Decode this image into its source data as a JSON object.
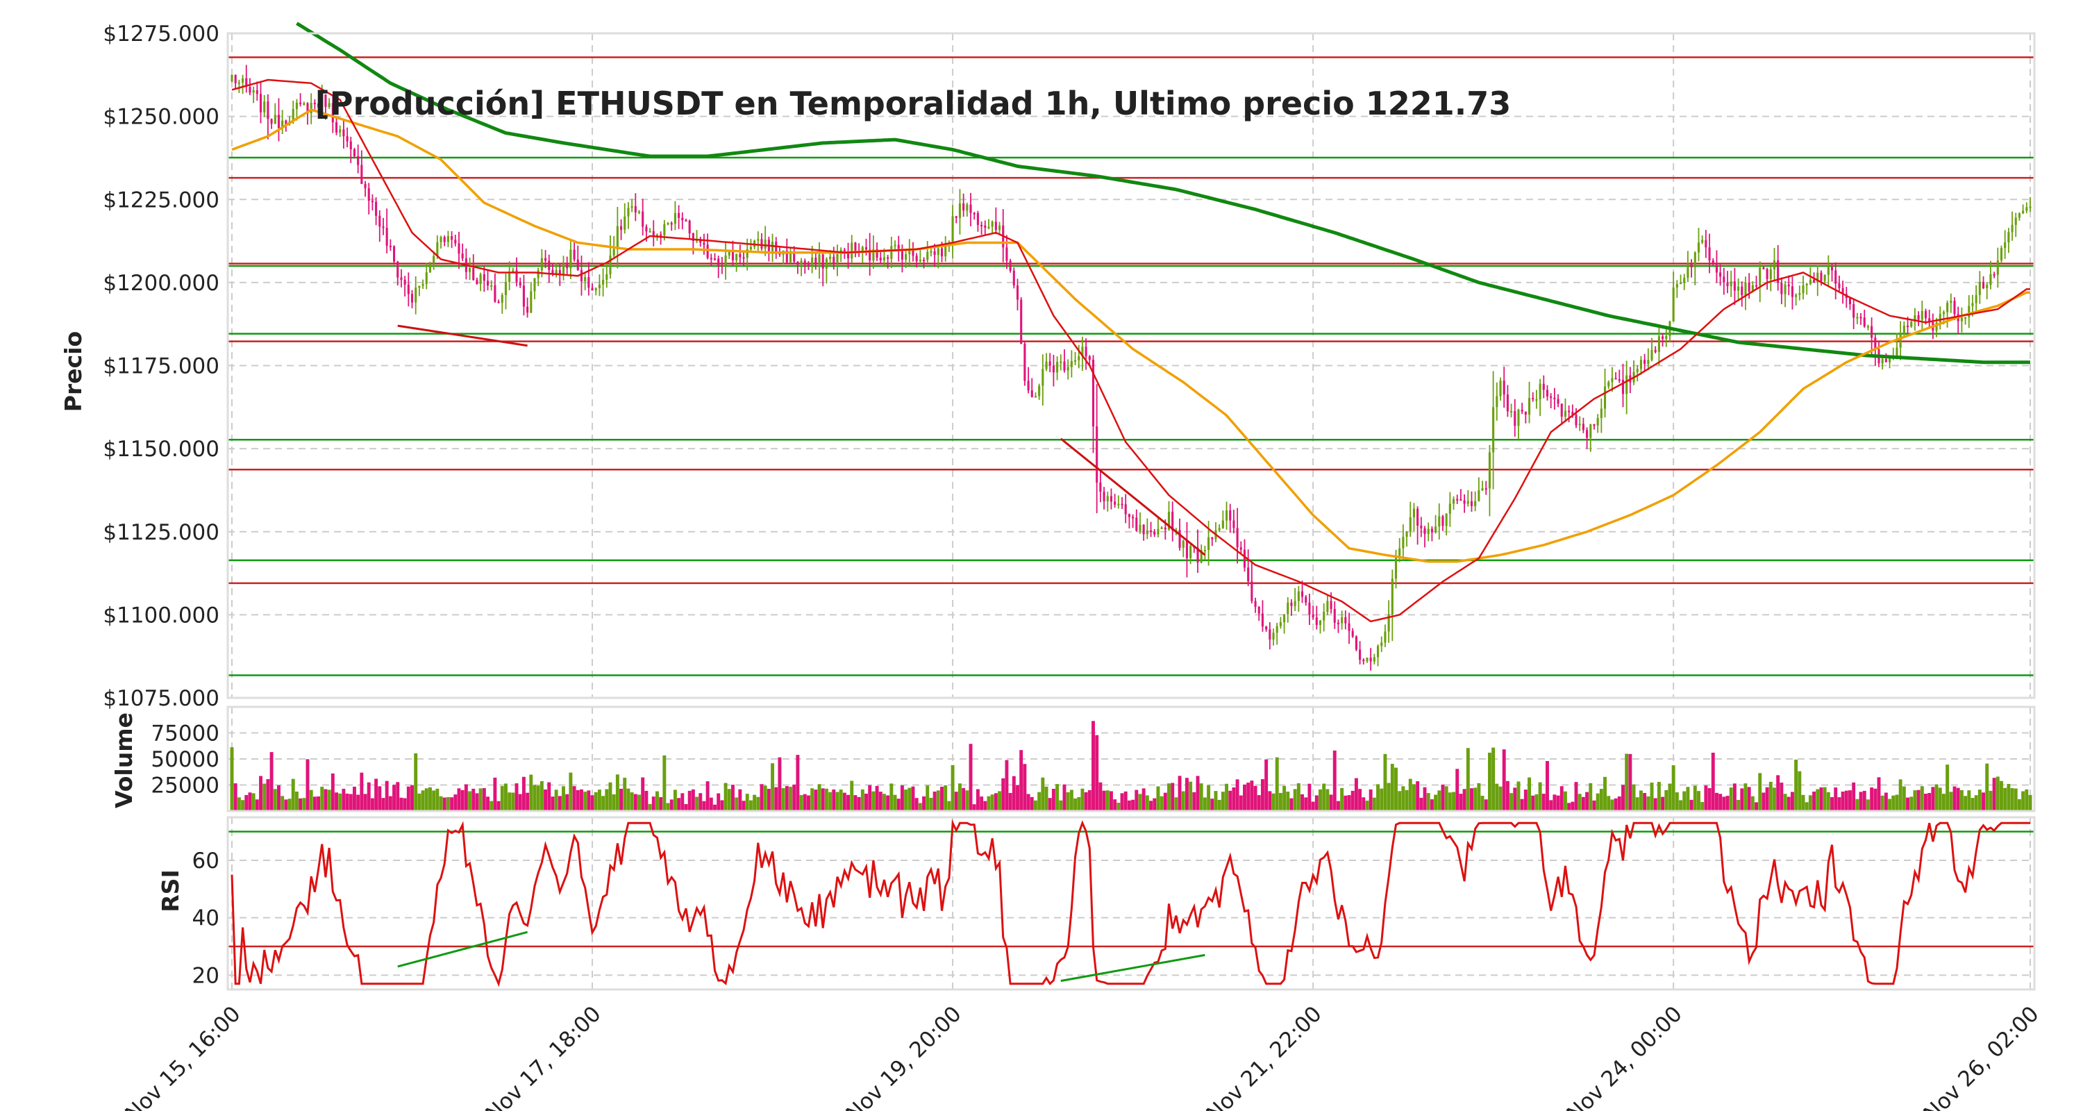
{
  "chart_data": {
    "type": "candlestick",
    "title": "[Producción] ETHUSDT en Temporalidad 1h, Ultimo precio 1221.73",
    "last_price": 1221.73,
    "x_tick_labels": [
      "Nov 15, 16:00",
      "Nov 17, 18:00",
      "Nov 19, 20:00",
      "Nov 21, 22:00",
      "Nov 24, 00:00",
      "Nov 26, 02:00"
    ],
    "colors": {
      "up": "#6aa00f",
      "down": "#e0147a",
      "ma_fast": "#dd1111",
      "ma_mid": "#f0a000",
      "ma_slow": "#118811",
      "support": "#119911",
      "resistance": "#cc2222",
      "rsi": "#dd1111"
    },
    "price_panel": {
      "ylabel": "Precio",
      "ylim": [
        1075,
        1275
      ],
      "y_ticks": [
        1075,
        1100,
        1125,
        1150,
        1175,
        1200,
        1225,
        1250,
        1275
      ],
      "y_tick_labels": [
        "$1075.000",
        "$1100.000",
        "$1125.000",
        "$1150.000",
        "$1175.000",
        "$1200.000",
        "$1225.000",
        "$1250.000",
        "$1275.000"
      ],
      "resistance_levels": [
        1267.8,
        1231.5,
        1205.7,
        1182.3,
        1143.7,
        1109.5
      ],
      "support_levels": [
        1237.6,
        1205.0,
        1184.6,
        1152.7,
        1116.4,
        1081.8
      ],
      "close_keypoints": [
        [
          0,
          1262
        ],
        [
          6,
          1256
        ],
        [
          12,
          1248
        ],
        [
          18,
          1252
        ],
        [
          26,
          1255
        ],
        [
          30,
          1245
        ],
        [
          36,
          1232
        ],
        [
          42,
          1215
        ],
        [
          46,
          1203
        ],
        [
          50,
          1195
        ],
        [
          54,
          1202
        ],
        [
          58,
          1215
        ],
        [
          62,
          1212
        ],
        [
          66,
          1203
        ],
        [
          70,
          1200
        ],
        [
          74,
          1194
        ],
        [
          78,
          1205
        ],
        [
          82,
          1192
        ],
        [
          86,
          1208
        ],
        [
          90,
          1202
        ],
        [
          94,
          1208
        ],
        [
          98,
          1200
        ],
        [
          102,
          1198
        ],
        [
          106,
          1212
        ],
        [
          110,
          1222
        ],
        [
          114,
          1218
        ],
        [
          118,
          1213
        ],
        [
          124,
          1220
        ],
        [
          130,
          1210
        ],
        [
          136,
          1207
        ],
        [
          142,
          1209
        ],
        [
          148,
          1212
        ],
        [
          154,
          1208
        ],
        [
          160,
          1205
        ],
        [
          166,
          1207
        ],
        [
          172,
          1210
        ],
        [
          178,
          1208
        ],
        [
          184,
          1210
        ],
        [
          190,
          1208
        ],
        [
          198,
          1210
        ],
        [
          202,
          1225
        ],
        [
          206,
          1220
        ],
        [
          212,
          1218
        ],
        [
          216,
          1205
        ],
        [
          218,
          1195
        ],
        [
          220,
          1168
        ],
        [
          222,
          1165
        ],
        [
          226,
          1175
        ],
        [
          230,
          1175
        ],
        [
          234,
          1178
        ],
        [
          236,
          1180
        ],
        [
          238,
          1175
        ],
        [
          240,
          1138
        ],
        [
          246,
          1132
        ],
        [
          252,
          1125
        ],
        [
          256,
          1122
        ],
        [
          260,
          1130
        ],
        [
          264,
          1120
        ],
        [
          268,
          1118
        ],
        [
          272,
          1125
        ],
        [
          276,
          1130
        ],
        [
          280,
          1118
        ],
        [
          284,
          1102
        ],
        [
          288,
          1095
        ],
        [
          292,
          1100
        ],
        [
          296,
          1105
        ],
        [
          300,
          1098
        ],
        [
          304,
          1102
        ],
        [
          308,
          1098
        ],
        [
          312,
          1090
        ],
        [
          316,
          1085
        ],
        [
          318,
          1090
        ],
        [
          320,
          1096
        ],
        [
          324,
          1122
        ],
        [
          328,
          1130
        ],
        [
          332,
          1125
        ],
        [
          336,
          1128
        ],
        [
          340,
          1134
        ],
        [
          344,
          1132
        ],
        [
          348,
          1140
        ],
        [
          350,
          1160
        ],
        [
          352,
          1168
        ],
        [
          356,
          1158
        ],
        [
          360,
          1163
        ],
        [
          364,
          1170
        ],
        [
          368,
          1162
        ],
        [
          372,
          1160
        ],
        [
          376,
          1155
        ],
        [
          378,
          1158
        ],
        [
          382,
          1170
        ],
        [
          386,
          1168
        ],
        [
          390,
          1175
        ],
        [
          394,
          1180
        ],
        [
          398,
          1183
        ],
        [
          400,
          1198
        ],
        [
          404,
          1205
        ],
        [
          408,
          1212
        ],
        [
          412,
          1205
        ],
        [
          416,
          1200
        ],
        [
          420,
          1198
        ],
        [
          424,
          1202
        ],
        [
          428,
          1205
        ],
        [
          430,
          1198
        ],
        [
          434,
          1195
        ],
        [
          438,
          1200
        ],
        [
          442,
          1203
        ],
        [
          446,
          1200
        ],
        [
          450,
          1190
        ],
        [
          454,
          1185
        ],
        [
          458,
          1175
        ],
        [
          460,
          1178
        ],
        [
          464,
          1185
        ],
        [
          468,
          1190
        ],
        [
          472,
          1188
        ],
        [
          476,
          1193
        ],
        [
          480,
          1190
        ],
        [
          484,
          1198
        ],
        [
          488,
          1202
        ],
        [
          492,
          1210
        ],
        [
          494,
          1218
        ],
        [
          498,
          1221.73
        ]
      ],
      "ma_fast_keypoints": [
        [
          0,
          1258
        ],
        [
          10,
          1261
        ],
        [
          22,
          1260
        ],
        [
          30,
          1255
        ],
        [
          40,
          1235
        ],
        [
          50,
          1215
        ],
        [
          58,
          1207
        ],
        [
          66,
          1205
        ],
        [
          74,
          1203
        ],
        [
          84,
          1203
        ],
        [
          96,
          1202
        ],
        [
          104,
          1206
        ],
        [
          116,
          1214
        ],
        [
          128,
          1213
        ],
        [
          150,
          1211
        ],
        [
          170,
          1209
        ],
        [
          190,
          1210
        ],
        [
          200,
          1212
        ],
        [
          212,
          1215
        ],
        [
          218,
          1212
        ],
        [
          228,
          1190
        ],
        [
          238,
          1175
        ],
        [
          248,
          1152
        ],
        [
          260,
          1136
        ],
        [
          272,
          1125
        ],
        [
          284,
          1115
        ],
        [
          296,
          1110
        ],
        [
          308,
          1104
        ],
        [
          316,
          1098
        ],
        [
          324,
          1100
        ],
        [
          336,
          1110
        ],
        [
          346,
          1117
        ],
        [
          356,
          1135
        ],
        [
          366,
          1155
        ],
        [
          378,
          1165
        ],
        [
          390,
          1172
        ],
        [
          402,
          1180
        ],
        [
          414,
          1192
        ],
        [
          426,
          1200
        ],
        [
          436,
          1203
        ],
        [
          448,
          1196
        ],
        [
          460,
          1190
        ],
        [
          470,
          1188
        ],
        [
          480,
          1190
        ],
        [
          490,
          1192
        ],
        [
          498,
          1198
        ]
      ],
      "ma_mid_keypoints": [
        [
          0,
          1240
        ],
        [
          10,
          1244
        ],
        [
          22,
          1252
        ],
        [
          34,
          1248
        ],
        [
          46,
          1244
        ],
        [
          58,
          1237
        ],
        [
          70,
          1224
        ],
        [
          84,
          1217
        ],
        [
          96,
          1212
        ],
        [
          110,
          1210
        ],
        [
          128,
          1210
        ],
        [
          150,
          1209
        ],
        [
          170,
          1209
        ],
        [
          190,
          1210
        ],
        [
          204,
          1212
        ],
        [
          218,
          1212
        ],
        [
          234,
          1195
        ],
        [
          250,
          1180
        ],
        [
          264,
          1170
        ],
        [
          276,
          1160
        ],
        [
          288,
          1145
        ],
        [
          300,
          1130
        ],
        [
          310,
          1120
        ],
        [
          320,
          1118
        ],
        [
          332,
          1116
        ],
        [
          340,
          1116
        ],
        [
          352,
          1118
        ],
        [
          364,
          1121
        ],
        [
          376,
          1125
        ],
        [
          388,
          1130
        ],
        [
          400,
          1136
        ],
        [
          412,
          1145
        ],
        [
          424,
          1155
        ],
        [
          436,
          1168
        ],
        [
          448,
          1176
        ],
        [
          460,
          1182
        ],
        [
          470,
          1186
        ],
        [
          480,
          1190
        ],
        [
          490,
          1193
        ],
        [
          498,
          1197
        ]
      ],
      "ma_slow_keypoints": [
        [
          18,
          1278
        ],
        [
          30,
          1270
        ],
        [
          44,
          1260
        ],
        [
          60,
          1252
        ],
        [
          76,
          1245
        ],
        [
          92,
          1242
        ],
        [
          104,
          1240
        ],
        [
          116,
          1238
        ],
        [
          132,
          1238
        ],
        [
          148,
          1240
        ],
        [
          164,
          1242
        ],
        [
          184,
          1243
        ],
        [
          200,
          1240
        ],
        [
          218,
          1235
        ],
        [
          240,
          1232
        ],
        [
          262,
          1228
        ],
        [
          284,
          1222
        ],
        [
          306,
          1215
        ],
        [
          328,
          1207
        ],
        [
          346,
          1200
        ],
        [
          364,
          1195
        ],
        [
          382,
          1190
        ],
        [
          400,
          1186
        ],
        [
          418,
          1182
        ],
        [
          436,
          1180
        ],
        [
          454,
          1178
        ],
        [
          470,
          1177
        ],
        [
          486,
          1176
        ],
        [
          498,
          1176
        ]
      ],
      "divergence_lines": [
        [
          [
            46,
            1187
          ],
          [
            82,
            1181
          ]
        ],
        [
          [
            230,
            1153
          ],
          [
            270,
            1118
          ]
        ]
      ]
    },
    "volume_panel": {
      "ylabel": "Volume",
      "ylim": [
        0,
        100000
      ],
      "y_ticks": [
        25000,
        50000,
        75000
      ],
      "y_tick_labels": [
        "25000",
        "50000",
        "75000"
      ]
    },
    "rsi_panel": {
      "ylabel": "RSI",
      "ylim": [
        15,
        75
      ],
      "y_ticks": [
        20,
        40,
        60
      ],
      "y_tick_labels": [
        "20",
        "40",
        "60"
      ],
      "overbought": 70,
      "oversold": 30,
      "divergence_lines": [
        [
          [
            46,
            23
          ],
          [
            82,
            35
          ]
        ],
        [
          [
            230,
            18
          ],
          [
            270,
            27
          ]
        ]
      ]
    }
  }
}
